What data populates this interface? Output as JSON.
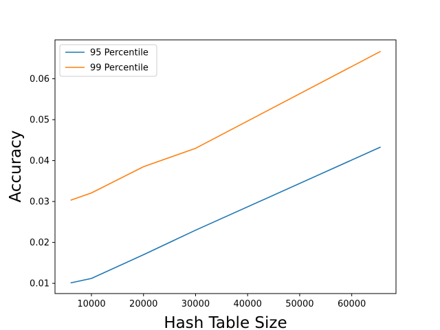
{
  "chart_data": {
    "type": "line",
    "title": "",
    "xlabel": "Hash Table Size",
    "ylabel": "Accuracy",
    "xlim": [
      3000,
      68500
    ],
    "ylim": [
      0.0075,
      0.0695
    ],
    "xticks": [
      10000,
      20000,
      30000,
      40000,
      50000,
      60000
    ],
    "xtick_labels": [
      "10000",
      "20000",
      "30000",
      "40000",
      "50000",
      "60000"
    ],
    "yticks": [
      0.01,
      0.02,
      0.03,
      0.04,
      0.05,
      0.06
    ],
    "ytick_labels": [
      "0.01",
      "0.02",
      "0.03",
      "0.04",
      "0.05",
      "0.06"
    ],
    "grid": false,
    "legend_position": "top-left",
    "x": [
      6000,
      10000,
      20000,
      30000,
      65536
    ],
    "series": [
      {
        "name": "95 Percentile",
        "color": "#1f77b4",
        "values": [
          0.0101,
          0.0112,
          0.017,
          0.023,
          0.0433
        ]
      },
      {
        "name": "99 Percentile",
        "color": "#ff7f0e",
        "values": [
          0.0303,
          0.0321,
          0.0385,
          0.043,
          0.0667
        ]
      }
    ]
  }
}
